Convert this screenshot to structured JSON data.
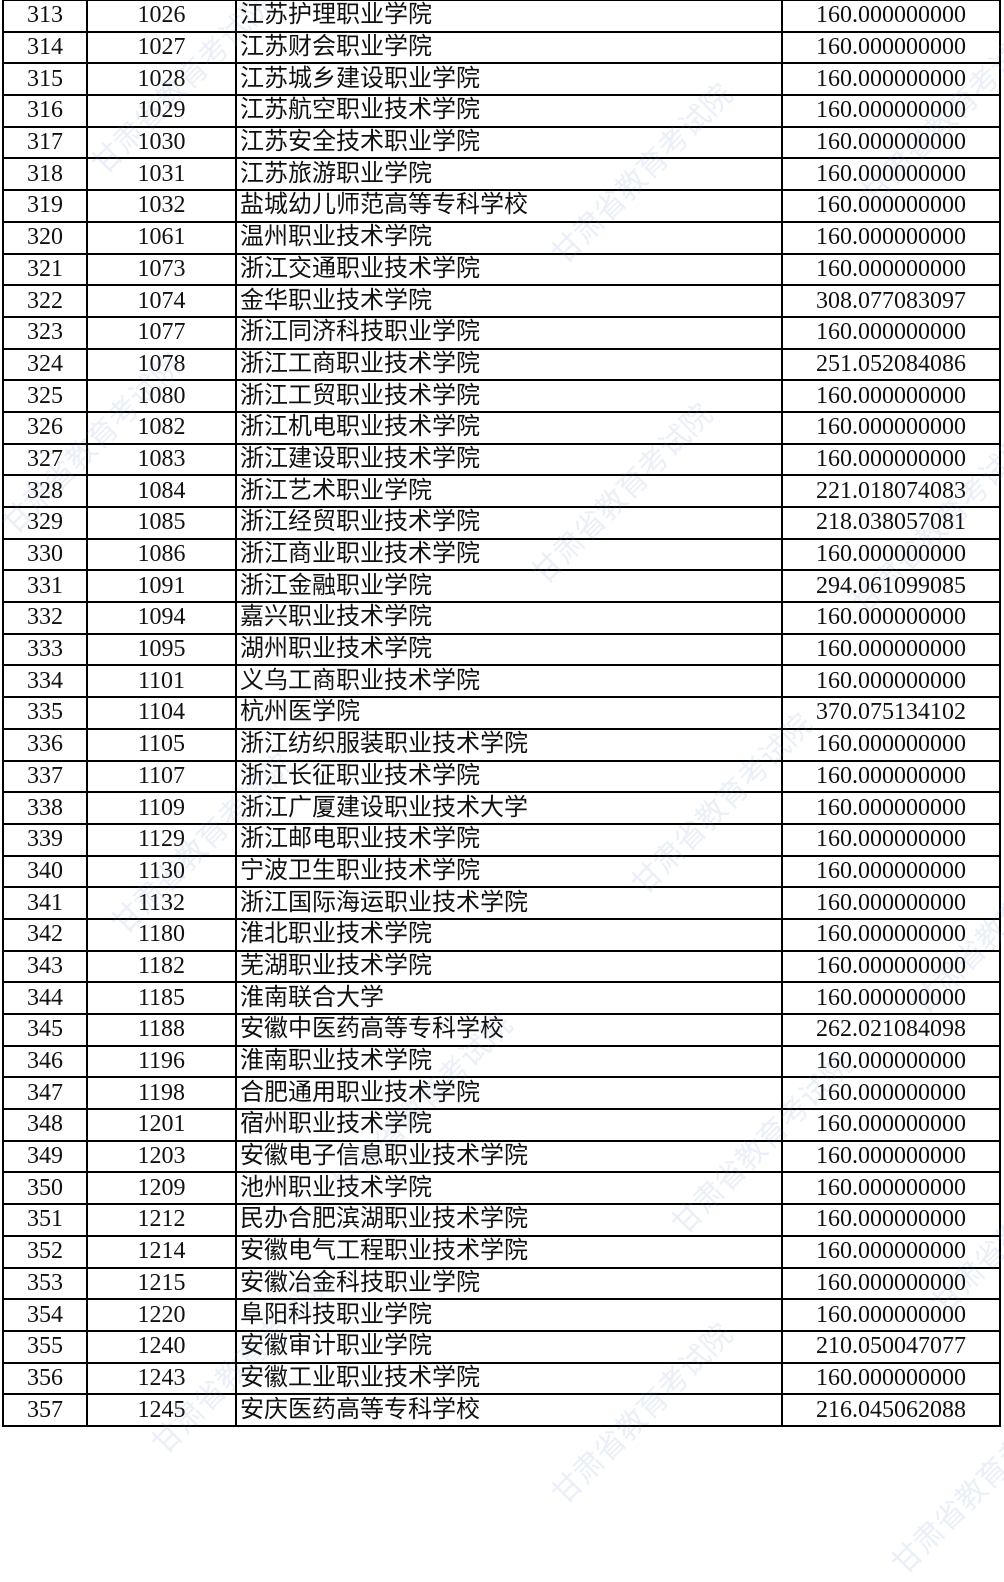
{
  "watermark": "甘肃省教育考试院",
  "rows": [
    {
      "no": "313",
      "code": "1026",
      "name": "江苏护理职业学院",
      "score": "160.000000000"
    },
    {
      "no": "314",
      "code": "1027",
      "name": "江苏财会职业学院",
      "score": "160.000000000"
    },
    {
      "no": "315",
      "code": "1028",
      "name": "江苏城乡建设职业学院",
      "score": "160.000000000"
    },
    {
      "no": "316",
      "code": "1029",
      "name": "江苏航空职业技术学院",
      "score": "160.000000000"
    },
    {
      "no": "317",
      "code": "1030",
      "name": "江苏安全技术职业学院",
      "score": "160.000000000"
    },
    {
      "no": "318",
      "code": "1031",
      "name": "江苏旅游职业学院",
      "score": "160.000000000"
    },
    {
      "no": "319",
      "code": "1032",
      "name": "盐城幼儿师范高等专科学校",
      "score": "160.000000000"
    },
    {
      "no": "320",
      "code": "1061",
      "name": "温州职业技术学院",
      "score": "160.000000000"
    },
    {
      "no": "321",
      "code": "1073",
      "name": "浙江交通职业技术学院",
      "score": "160.000000000"
    },
    {
      "no": "322",
      "code": "1074",
      "name": "金华职业技术学院",
      "score": "308.077083097"
    },
    {
      "no": "323",
      "code": "1077",
      "name": "浙江同济科技职业学院",
      "score": "160.000000000"
    },
    {
      "no": "324",
      "code": "1078",
      "name": "浙江工商职业技术学院",
      "score": "251.052084086"
    },
    {
      "no": "325",
      "code": "1080",
      "name": "浙江工贸职业技术学院",
      "score": "160.000000000"
    },
    {
      "no": "326",
      "code": "1082",
      "name": "浙江机电职业技术学院",
      "score": "160.000000000"
    },
    {
      "no": "327",
      "code": "1083",
      "name": "浙江建设职业技术学院",
      "score": "160.000000000"
    },
    {
      "no": "328",
      "code": "1084",
      "name": "浙江艺术职业学院",
      "score": "221.018074083"
    },
    {
      "no": "329",
      "code": "1085",
      "name": "浙江经贸职业技术学院",
      "score": "218.038057081"
    },
    {
      "no": "330",
      "code": "1086",
      "name": "浙江商业职业技术学院",
      "score": "160.000000000"
    },
    {
      "no": "331",
      "code": "1091",
      "name": "浙江金融职业学院",
      "score": "294.061099085"
    },
    {
      "no": "332",
      "code": "1094",
      "name": "嘉兴职业技术学院",
      "score": "160.000000000"
    },
    {
      "no": "333",
      "code": "1095",
      "name": "湖州职业技术学院",
      "score": "160.000000000"
    },
    {
      "no": "334",
      "code": "1101",
      "name": "义乌工商职业技术学院",
      "score": "160.000000000"
    },
    {
      "no": "335",
      "code": "1104",
      "name": "杭州医学院",
      "score": "370.075134102"
    },
    {
      "no": "336",
      "code": "1105",
      "name": "浙江纺织服装职业技术学院",
      "score": "160.000000000"
    },
    {
      "no": "337",
      "code": "1107",
      "name": "浙江长征职业技术学院",
      "score": "160.000000000"
    },
    {
      "no": "338",
      "code": "1109",
      "name": "浙江广厦建设职业技术大学",
      "score": "160.000000000"
    },
    {
      "no": "339",
      "code": "1129",
      "name": "浙江邮电职业技术学院",
      "score": "160.000000000"
    },
    {
      "no": "340",
      "code": "1130",
      "name": "宁波卫生职业技术学院",
      "score": "160.000000000"
    },
    {
      "no": "341",
      "code": "1132",
      "name": "浙江国际海运职业技术学院",
      "score": "160.000000000"
    },
    {
      "no": "342",
      "code": "1180",
      "name": "淮北职业技术学院",
      "score": "160.000000000"
    },
    {
      "no": "343",
      "code": "1182",
      "name": "芜湖职业技术学院",
      "score": "160.000000000"
    },
    {
      "no": "344",
      "code": "1185",
      "name": "淮南联合大学",
      "score": "160.000000000"
    },
    {
      "no": "345",
      "code": "1188",
      "name": "安徽中医药高等专科学校",
      "score": "262.021084098"
    },
    {
      "no": "346",
      "code": "1196",
      "name": "淮南职业技术学院",
      "score": "160.000000000"
    },
    {
      "no": "347",
      "code": "1198",
      "name": "合肥通用职业技术学院",
      "score": "160.000000000"
    },
    {
      "no": "348",
      "code": "1201",
      "name": "宿州职业技术学院",
      "score": "160.000000000"
    },
    {
      "no": "349",
      "code": "1203",
      "name": "安徽电子信息职业技术学院",
      "score": "160.000000000"
    },
    {
      "no": "350",
      "code": "1209",
      "name": "池州职业技术学院",
      "score": "160.000000000"
    },
    {
      "no": "351",
      "code": "1212",
      "name": "民办合肥滨湖职业技术学院",
      "score": "160.000000000"
    },
    {
      "no": "352",
      "code": "1214",
      "name": "安徽电气工程职业技术学院",
      "score": "160.000000000"
    },
    {
      "no": "353",
      "code": "1215",
      "name": "安徽冶金科技职业学院",
      "score": "160.000000000"
    },
    {
      "no": "354",
      "code": "1220",
      "name": "阜阳科技职业学院",
      "score": "160.000000000"
    },
    {
      "no": "355",
      "code": "1240",
      "name": "安徽审计职业学院",
      "score": "210.050047077"
    },
    {
      "no": "356",
      "code": "1243",
      "name": "安徽工业职业技术学院",
      "score": "160.000000000"
    },
    {
      "no": "357",
      "code": "1245",
      "name": "安庆医药高等专科学校",
      "score": "216.045062088"
    }
  ]
}
